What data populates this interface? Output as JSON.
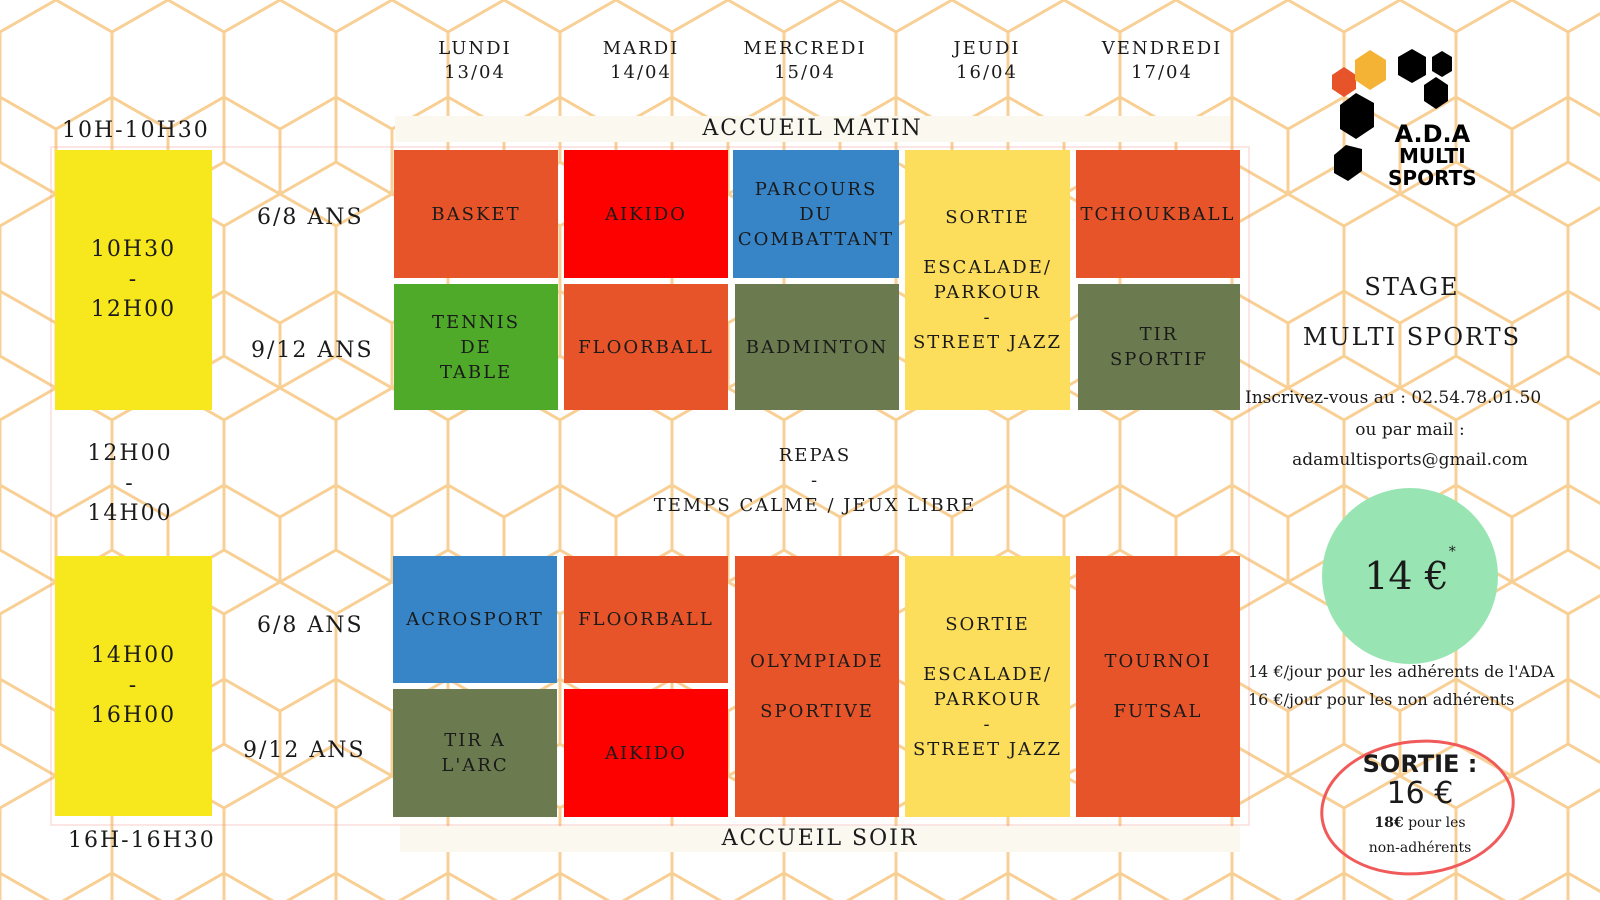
{
  "days": [
    {
      "name": "LUNDI",
      "date": "13/04"
    },
    {
      "name": "MARDI",
      "date": "14/04"
    },
    {
      "name": "MERCREDI",
      "date": "15/04"
    },
    {
      "name": "JEUDI",
      "date": "16/04"
    },
    {
      "name": "VENDREDI",
      "date": "17/04"
    }
  ],
  "accueil_matin": "ACCUEIL MATIN",
  "accueil_soir": "ACCUEIL SOIR",
  "times": {
    "early": "10H-10H30",
    "morning": "10H30\n-\n12H00",
    "lunch": "12H00\n-\n14H00",
    "afternoon": "14H00\n-\n16H00",
    "late": "16H-16H30"
  },
  "ages": {
    "young": "6/8 ANS",
    "old": "9/12 ANS"
  },
  "morning": {
    "young": [
      "BASKET",
      "AIKIDO",
      "PARCOURS\nDU\nCOMBATTANT",
      "TCHOUKBALL"
    ],
    "old": [
      "TENNIS\nDE\nTABLE",
      "FLOORBALL",
      "BADMINTON",
      "TIR\nSPORTIF"
    ],
    "jeudi": "SORTIE\n\nESCALADE/\nPARKOUR\n-\nSTREET JAZZ"
  },
  "lunch": "REPAS\n-\nTEMPS CALME / JEUX LIBRE",
  "afternoon": {
    "young": [
      "ACROSPORT",
      "FLOORBALL"
    ],
    "old": [
      "TIR A\nL'ARC",
      "AIKIDO"
    ],
    "mercredi": "OLYMPIADE\n\nSPORTIVE",
    "jeudi": "SORTIE\n\nESCALADE/\nPARKOUR\n-\nSTREET JAZZ",
    "vendredi": "TOURNOI\n\nFUTSAL"
  },
  "logo": {
    "line1": "A.D.A",
    "line2": "MULTI",
    "line3": "SPORTS"
  },
  "stage": {
    "line1": "STAGE",
    "line2": "MULTI SPORTS"
  },
  "contact": {
    "phone": "Inscrivez-vous au : 02.54.78.01.50",
    "mail_label": "ou par mail :",
    "email": "adamultisports@gmail.com"
  },
  "price": {
    "value": "14 €",
    "star": "*",
    "member": "14 €/jour pour les adhérents de l'ADA",
    "non_member": "16 €/jour pour les non adhérents"
  },
  "sortie": {
    "title": "SORTIE :",
    "price": "16 €",
    "note_bold": "18€",
    "note": " pour les",
    "note2": "non-adhérents"
  },
  "colors": {
    "orange": "#e8542a",
    "red": "#fc0100",
    "blue": "#3785c7",
    "olive": "#6b7b4f",
    "green": "#4faa2a",
    "yellow": "#fdde5c",
    "bright_yellow": "#f7e81d",
    "mint": "#98e5b3"
  }
}
